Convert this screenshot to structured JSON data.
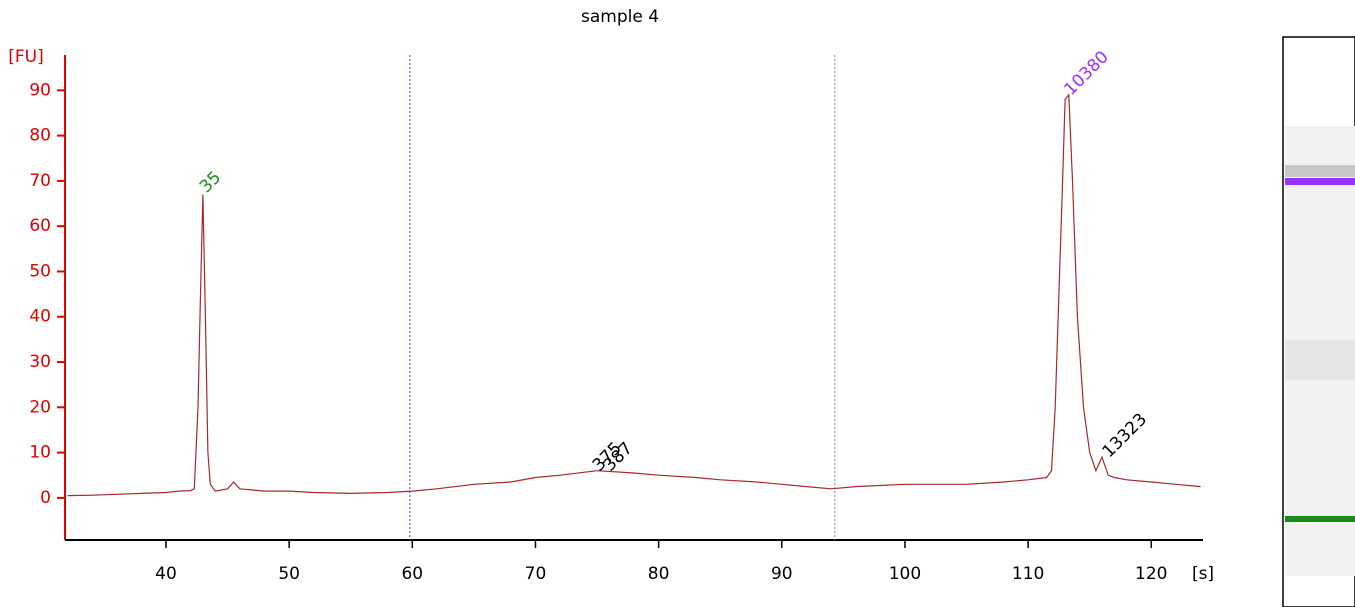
{
  "chart_data": {
    "type": "line",
    "title": "sample 4",
    "y_label": "[FU]",
    "x_label": "[s]",
    "x": [
      32,
      34,
      36,
      38,
      40,
      41,
      42,
      42.3,
      42.6,
      42.8,
      43.0,
      43.2,
      43.4,
      43.6,
      44,
      45,
      45.5,
      46,
      48,
      50,
      52,
      55,
      58,
      60,
      62,
      65,
      68,
      70,
      72,
      75,
      78,
      80,
      83,
      85,
      88,
      90,
      92,
      94,
      96,
      100,
      103,
      105,
      108,
      110,
      111.5,
      111.9,
      112.2,
      112.5,
      112.8,
      113.0,
      113.3,
      113.6,
      114,
      114.5,
      115,
      115.5,
      116,
      116.5,
      117,
      118,
      120,
      122,
      124
    ],
    "series": [
      {
        "name": "sample 4",
        "color": "#a52a2a",
        "values": [
          0.5,
          0.6,
          0.8,
          1,
          1.2,
          1.5,
          1.6,
          2,
          20,
          45,
          67,
          40,
          10,
          3,
          1.5,
          2,
          3.5,
          2,
          1.5,
          1.5,
          1.2,
          1,
          1.2,
          1.5,
          2,
          3,
          3.5,
          4.5,
          5,
          6,
          5.5,
          5,
          4.5,
          4,
          3.5,
          3,
          2.5,
          2,
          2.5,
          3,
          3,
          3,
          3.5,
          4,
          4.5,
          6,
          20,
          45,
          70,
          88,
          89,
          70,
          40,
          20,
          10,
          6,
          9,
          5,
          4.5,
          4,
          3.5,
          3,
          2.5
        ]
      }
    ],
    "xlim": [
      31.8,
      124.2
    ],
    "ylim": [
      -9.3,
      97.8
    ],
    "xticks": [
      40,
      50,
      60,
      70,
      80,
      90,
      100,
      110,
      120
    ],
    "yticks": [
      0,
      10,
      20,
      30,
      40,
      50,
      60,
      70,
      80,
      90
    ],
    "markers": [
      {
        "x": 59.8,
        "color": "#3333cc"
      },
      {
        "x": 94.3,
        "color": "#888888"
      }
    ],
    "annotations": [
      {
        "text": "35",
        "x": 43.0,
        "y": 68,
        "color": "#1a8a1a"
      },
      {
        "text": "375",
        "x": 74.9,
        "y": 6.5,
        "color": "#000000"
      },
      {
        "text": "387",
        "x": 75.8,
        "y": 6.5,
        "color": "#000000"
      },
      {
        "text": "10380",
        "x": 113.2,
        "y": 89.5,
        "color": "#9933ff"
      },
      {
        "text": "13323",
        "x": 116.3,
        "y": 9.5,
        "color": "#000000"
      }
    ]
  }
}
